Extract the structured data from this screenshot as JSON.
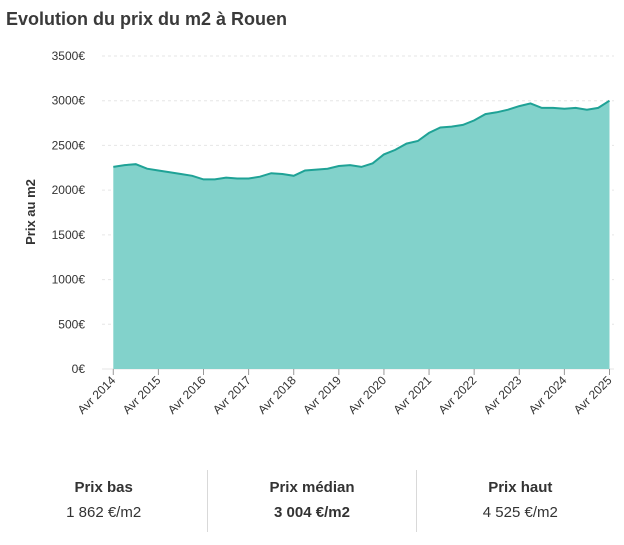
{
  "title": "Evolution du prix du m2 à Rouen",
  "colors": {
    "area": "#82d2cb",
    "line": "#1fa296",
    "grid": "#e6e6e6"
  },
  "chart_data": {
    "type": "area",
    "title": "Evolution du prix du m2 à Rouen",
    "ylabel": "Prix au m2",
    "xlabel": "",
    "ylim": [
      0,
      3500
    ],
    "yticks": [
      "0€",
      "500€",
      "1000€",
      "1500€",
      "2000€",
      "2500€",
      "3000€",
      "3500€"
    ],
    "xticks": [
      "Avr 2014",
      "Avr 2015",
      "Avr 2016",
      "Avr 2017",
      "Avr 2018",
      "Avr 2019",
      "Avr 2020",
      "Avr 2021",
      "Avr 2022",
      "Avr 2023",
      "Avr 2024",
      "Avr 2025"
    ],
    "grid": true,
    "series": [
      {
        "x": [
          2014.25,
          2014.5,
          2014.75,
          2015.0,
          2015.25,
          2015.5,
          2015.75,
          2016.0,
          2016.25,
          2016.5,
          2016.75,
          2017.0,
          2017.25,
          2017.5,
          2017.75,
          2018.0,
          2018.25,
          2018.5,
          2018.75,
          2019.0,
          2019.25,
          2019.5,
          2019.75,
          2020.0,
          2020.25,
          2020.5,
          2020.75,
          2021.0,
          2021.25,
          2021.5,
          2021.75,
          2022.0,
          2022.25,
          2022.5,
          2022.75,
          2023.0,
          2023.25,
          2023.5,
          2023.75,
          2024.0,
          2024.25,
          2024.5,
          2024.75,
          2025.0,
          2025.25
        ],
        "values": [
          2260,
          2280,
          2290,
          2240,
          2220,
          2200,
          2180,
          2160,
          2120,
          2120,
          2140,
          2130,
          2130,
          2150,
          2190,
          2180,
          2160,
          2220,
          2230,
          2240,
          2270,
          2280,
          2260,
          2300,
          2400,
          2450,
          2520,
          2550,
          2640,
          2700,
          2710,
          2730,
          2780,
          2850,
          2870,
          2900,
          2940,
          2970,
          2920,
          2920,
          2910,
          2920,
          2900,
          2920,
          3000
        ]
      }
    ]
  },
  "stats": {
    "low": {
      "label": "Prix bas",
      "value": "1 862 €/m2"
    },
    "median": {
      "label": "Prix médian",
      "value": "3 004 €/m2"
    },
    "high": {
      "label": "Prix haut",
      "value": "4 525 €/m2"
    }
  }
}
